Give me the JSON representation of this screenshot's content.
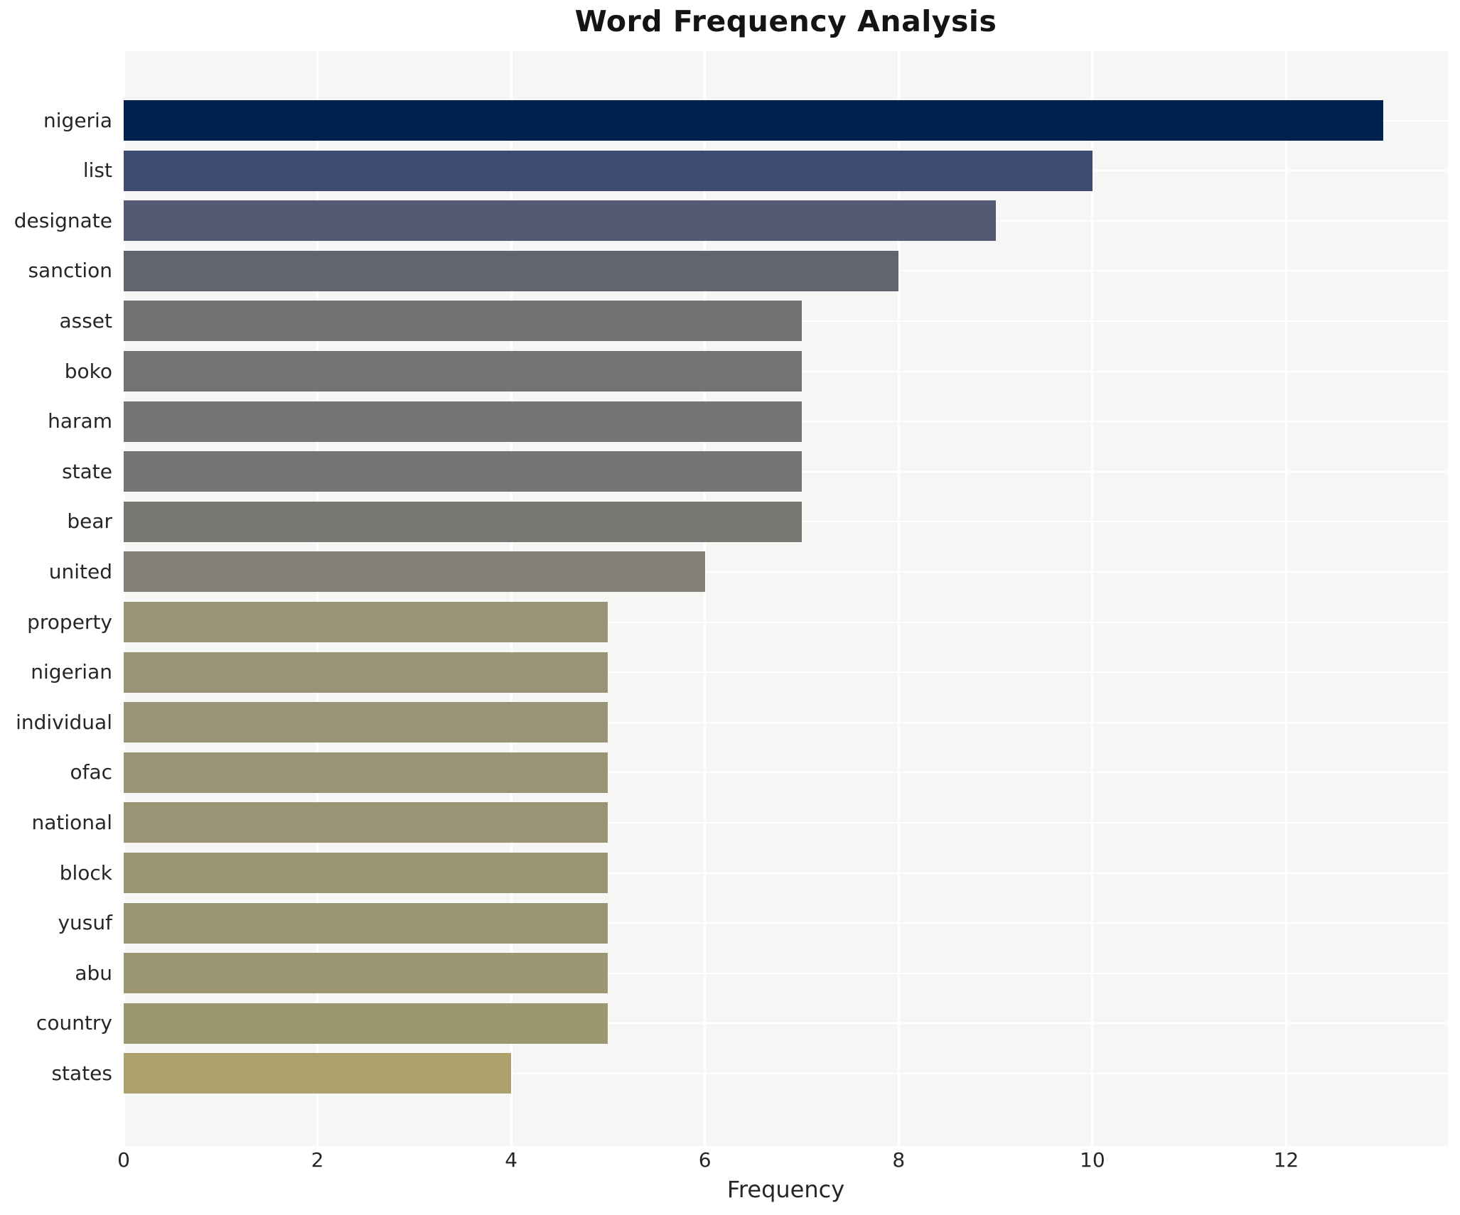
{
  "chart_data": {
    "type": "bar",
    "orientation": "horizontal",
    "title": "Word Frequency Analysis",
    "xlabel": "Frequency",
    "ylabel": "",
    "categories": [
      "nigeria",
      "list",
      "designate",
      "sanction",
      "asset",
      "boko",
      "haram",
      "state",
      "bear",
      "united",
      "property",
      "nigerian",
      "individual",
      "ofac",
      "national",
      "block",
      "yusuf",
      "abu",
      "country",
      "states"
    ],
    "values": [
      13,
      10,
      9,
      8,
      7,
      7,
      7,
      7,
      7,
      6,
      5,
      5,
      5,
      5,
      5,
      5,
      5,
      5,
      5,
      4
    ],
    "bar_colors": [
      "#01224e",
      "#3e4c72",
      "#545a71",
      "#626470",
      "#727273",
      "#737373",
      "#747474",
      "#757575",
      "#777774",
      "#838077",
      "#989477",
      "#999476",
      "#999475",
      "#9a9475",
      "#9a9474",
      "#9b9574",
      "#9b9573",
      "#9c9673",
      "#9c9671",
      "#aca06b"
    ],
    "x_ticks": [
      0,
      2,
      4,
      6,
      8,
      10,
      12
    ],
    "x_tick_labels": [
      "0",
      "2",
      "4",
      "6",
      "8",
      "10",
      "12"
    ],
    "xlim": [
      0,
      13.67
    ],
    "grid": true,
    "legend": false,
    "plot_bg_color": "#f6f6f5",
    "grid_color": "#ffffff",
    "text_color": "#262626",
    "title_color": "#141414"
  }
}
